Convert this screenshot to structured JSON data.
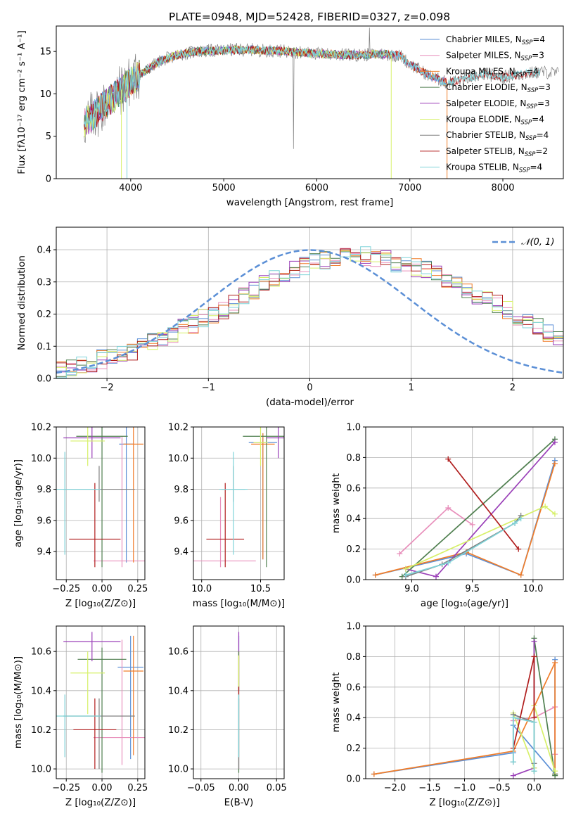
{
  "figure_title": "PLATE=0948, MJD=52428, FIBERID=0327, z=0.098",
  "colors": {
    "chabrier_miles": "#5b8fd6",
    "salpeter_miles": "#e88fbb",
    "kroupa_miles": "#f07d2a",
    "chabrier_elodie": "#4f7f4f",
    "salpeter_elodie": "#9a3fb8",
    "kroupa_elodie": "#d7f06a",
    "chabrier_stelib": "#808080",
    "salpeter_stelib": "#b01d1d",
    "kroupa_stelib": "#7fd3d8",
    "normal_curve": "#5b8fd6",
    "grid": "#b0b0b0"
  },
  "chart_data": [
    {
      "id": "spectrum",
      "type": "line",
      "xlabel": "wavelength [Angstrom, rest frame]",
      "ylabel": "Flux [fλ10⁻¹⁷ erg cm⁻² s⁻¹ A⁻¹]",
      "xlim": [
        3200,
        8650
      ],
      "ylim": [
        0,
        18
      ],
      "xticks": [
        "4000",
        "5000",
        "6000",
        "7000",
        "8000"
      ],
      "yticks": [
        "0",
        "5",
        "10",
        "15"
      ],
      "grid": false,
      "legend_position": "upper-right",
      "continuum": {
        "x": [
          3500,
          3600,
          3700,
          3800,
          3900,
          4000,
          4100,
          4200,
          4300,
          4500,
          4700,
          4900,
          5100,
          5300,
          5500,
          5700,
          5900,
          6100,
          6300,
          6500,
          6700,
          6900,
          7000,
          7200,
          7400,
          7600,
          7800,
          8000,
          8200,
          8400,
          8600
        ],
        "y": [
          6.5,
          7.5,
          8.5,
          9.5,
          10.5,
          11.5,
          12.3,
          13.0,
          13.8,
          14.6,
          15.0,
          15.1,
          15.2,
          15.2,
          15.1,
          15.0,
          14.8,
          14.7,
          14.6,
          14.6,
          14.7,
          14.5,
          13.5,
          12.2,
          11.3,
          11.8,
          12.3,
          12.0,
          12.3,
          12.6,
          12.4
        ]
      },
      "series": [
        {
          "name": "Chabrier MILES, N_SSP=4",
          "legend": "Chabrier MILES, N",
          "legend_sub": "SSP",
          "legend_val": "=4",
          "color_key": "chabrier_miles"
        },
        {
          "name": "Salpeter MILES, N_SSP=3",
          "legend": "Salpeter MILES, N",
          "legend_sub": "SSP",
          "legend_val": "=3",
          "color_key": "salpeter_miles"
        },
        {
          "name": "Kroupa MILES, N_SSP=4",
          "legend": "Kroupa MILES, N",
          "legend_sub": "SSP",
          "legend_val": "=4",
          "color_key": "kroupa_miles"
        },
        {
          "name": "Chabrier ELODIE, N_SSP=3",
          "legend": "Chabrier ELODIE, N",
          "legend_sub": "SSP",
          "legend_val": "=3",
          "color_key": "chabrier_elodie"
        },
        {
          "name": "Salpeter ELODIE, N_SSP=3",
          "legend": "Salpeter ELODIE, N",
          "legend_sub": "SSP",
          "legend_val": "=3",
          "color_key": "salpeter_elodie"
        },
        {
          "name": "Kroupa ELODIE, N_SSP=4",
          "legend": "Kroupa ELODIE, N",
          "legend_sub": "SSP",
          "legend_val": "=4",
          "color_key": "kroupa_elodie"
        },
        {
          "name": "Chabrier STELIB, N_SSP=4",
          "legend": "Chabrier STELIB, N",
          "legend_sub": "SSP",
          "legend_val": "=4",
          "color_key": "chabrier_stelib"
        },
        {
          "name": "Salpeter STELIB, N_SSP=2",
          "legend": "Salpeter STELIB, N",
          "legend_sub": "SSP",
          "legend_val": "=2",
          "color_key": "salpeter_stelib"
        },
        {
          "name": "Kroupa STELIB, N_SSP=4",
          "legend": "Kroupa STELIB, N",
          "legend_sub": "SSP",
          "legend_val": "=4",
          "color_key": "kroupa_stelib"
        }
      ]
    },
    {
      "id": "residuals",
      "type": "histogram",
      "xlabel": "(data-model)/error",
      "ylabel": "Normed distribution",
      "xlim": [
        -2.5,
        2.5
      ],
      "ylim": [
        0,
        0.47
      ],
      "xticks": [
        "−2",
        "−1",
        "0",
        "1",
        "2"
      ],
      "yticks": [
        "0.0",
        "0.1",
        "0.2",
        "0.3",
        "0.4"
      ],
      "grid": true,
      "legend_position": "upper-right",
      "legend": "𝒩(0, 1)",
      "bin_width": 0.1,
      "bin_start": -2.5,
      "base_values": [
        0.025,
        0.03,
        0.04,
        0.05,
        0.06,
        0.065,
        0.075,
        0.085,
        0.095,
        0.11,
        0.125,
        0.14,
        0.155,
        0.17,
        0.185,
        0.2,
        0.215,
        0.23,
        0.255,
        0.27,
        0.29,
        0.305,
        0.32,
        0.335,
        0.35,
        0.36,
        0.37,
        0.375,
        0.38,
        0.385,
        0.38,
        0.375,
        0.37,
        0.36,
        0.355,
        0.345,
        0.335,
        0.32,
        0.31,
        0.295,
        0.28,
        0.26,
        0.245,
        0.23,
        0.21,
        0.195,
        0.18,
        0.16,
        0.145,
        0.13
      ],
      "normal_curve": {
        "mu": 0,
        "sigma": 1
      }
    },
    {
      "id": "age_vs_Z",
      "type": "errorbar",
      "xlabel": "Z [log₁₀(Z/Z⊙)]",
      "ylabel": "age  [log₁₀(age/yr)]",
      "xlim": [
        -0.32,
        0.3
      ],
      "ylim": [
        9.22,
        10.2
      ],
      "xticks": [
        -0.25,
        0.0,
        0.25
      ],
      "xticklabels": [
        "−0.25",
        "0.00",
        "0.25"
      ],
      "yticks": [
        9.4,
        9.6,
        9.8,
        10.0,
        10.2
      ],
      "yticklabels": [
        "9.4",
        "9.6",
        "9.8",
        "10.0",
        "10.2"
      ],
      "grid": true,
      "points": [
        {
          "x": 0.17,
          "y": 10.09,
          "xe": 0.05,
          "yl": 9.33,
          "yh": 10.2,
          "c": "chabrier_miles"
        },
        {
          "x": 0.14,
          "y": 9.34,
          "xe": 0.2,
          "yl": 9.3,
          "yh": 10.14,
          "c": "salpeter_miles"
        },
        {
          "x": 0.22,
          "y": 10.09,
          "xe": 0.07,
          "yl": 9.33,
          "yh": 10.2,
          "c": "kroupa_miles"
        },
        {
          "x": 0.0,
          "y": 10.14,
          "xe": 0.18,
          "yl": 9.3,
          "yh": 10.2,
          "c": "chabrier_elodie"
        },
        {
          "x": -0.07,
          "y": 10.13,
          "xe": 0.2,
          "yl": 10.0,
          "yh": 10.2,
          "c": "salpeter_elodie"
        },
        {
          "x": -0.1,
          "y": 10.11,
          "xe": 0.12,
          "yl": 9.95,
          "yh": 10.2,
          "c": "kroupa_elodie"
        },
        {
          "x": -0.02,
          "y": 9.8,
          "xe": 0.25,
          "yl": 9.72,
          "yh": 9.95,
          "c": "chabrier_stelib"
        },
        {
          "x": -0.05,
          "y": 9.48,
          "xe": 0.18,
          "yl": 9.3,
          "yh": 9.84,
          "c": "salpeter_stelib"
        },
        {
          "x": -0.26,
          "y": 9.8,
          "xe": 0.25,
          "yl": 9.38,
          "yh": 10.04,
          "c": "kroupa_stelib"
        }
      ]
    },
    {
      "id": "age_vs_mass",
      "type": "errorbar",
      "xlabel": "mass [log₁₀(M/M⊙)]",
      "ylabel": "",
      "xlim": [
        9.93,
        10.7
      ],
      "ylim": [
        9.22,
        10.2
      ],
      "xticks": [
        10.0,
        10.5
      ],
      "xticklabels": [
        "10.0",
        "10.5"
      ],
      "yticks": [
        9.4,
        9.6,
        9.8,
        10.0,
        10.2
      ],
      "yticklabels": [
        "9.4",
        "9.6",
        "9.8",
        "10.0",
        "10.2"
      ],
      "grid": true,
      "points": [
        {
          "x": 10.52,
          "y": 10.1,
          "xe": 0.12,
          "yl": 9.35,
          "yh": 10.16,
          "c": "chabrier_miles"
        },
        {
          "x": 10.16,
          "y": 9.34,
          "xe": 0.3,
          "yl": 9.3,
          "yh": 9.75,
          "c": "salpeter_miles"
        },
        {
          "x": 10.52,
          "y": 10.09,
          "xe": 0.1,
          "yl": 9.35,
          "yh": 10.16,
          "c": "kroupa_miles"
        },
        {
          "x": 10.55,
          "y": 10.14,
          "xe": 0.2,
          "yl": 9.3,
          "yh": 10.2,
          "c": "chabrier_elodie"
        },
        {
          "x": 10.65,
          "y": 10.13,
          "xe": 0.1,
          "yl": 10.0,
          "yh": 10.2,
          "c": "salpeter_elodie"
        },
        {
          "x": 10.5,
          "y": 10.1,
          "xe": 0.06,
          "yl": 9.95,
          "yh": 10.2,
          "c": "kroupa_elodie"
        },
        {
          "x": 10.27,
          "y": 9.8,
          "xe": 0.1,
          "yl": 9.72,
          "yh": 9.95,
          "c": "chabrier_stelib"
        },
        {
          "x": 10.2,
          "y": 9.48,
          "xe": 0.16,
          "yl": 9.3,
          "yh": 9.84,
          "c": "salpeter_stelib"
        },
        {
          "x": 10.27,
          "y": 9.8,
          "xe": 0.12,
          "yl": 9.38,
          "yh": 10.04,
          "c": "kroupa_stelib"
        }
      ]
    },
    {
      "id": "weight_vs_age",
      "type": "line",
      "xlabel": "age  [log₁₀(age/yr)]",
      "ylabel": "mass weight",
      "xlim": [
        8.62,
        10.25
      ],
      "ylim": [
        0,
        1
      ],
      "xticks": [
        9.0,
        9.5,
        10.0
      ],
      "xticklabels": [
        "9.0",
        "9.5",
        "10.0"
      ],
      "yticks": [
        0,
        0.2,
        0.4,
        0.6,
        0.8,
        1.0
      ],
      "yticklabels": [
        "0.0",
        "0.2",
        "0.4",
        "0.6",
        "0.8",
        "1.0"
      ],
      "grid": true,
      "series": [
        {
          "c": "chabrier_miles",
          "x": [
            8.7,
            9.45,
            9.9,
            10.18
          ],
          "y": [
            0.03,
            0.17,
            0.03,
            0.78
          ]
        },
        {
          "c": "salpeter_miles",
          "x": [
            8.9,
            9.3,
            9.5
          ],
          "y": [
            0.17,
            0.47,
            0.36
          ]
        },
        {
          "c": "kroupa_miles",
          "x": [
            8.7,
            9.45,
            9.9,
            10.18
          ],
          "y": [
            0.03,
            0.18,
            0.03,
            0.76
          ]
        },
        {
          "c": "chabrier_elodie",
          "x": [
            8.92,
            10.18
          ],
          "y": [
            0.02,
            0.92
          ]
        },
        {
          "c": "salpeter_elodie",
          "x": [
            8.95,
            9.2,
            10.18
          ],
          "y": [
            0.07,
            0.02,
            0.9
          ]
        },
        {
          "c": "kroupa_elodie",
          "x": [
            8.95,
            10.1,
            10.18
          ],
          "y": [
            0.07,
            0.48,
            0.43
          ]
        },
        {
          "c": "chabrier_stelib",
          "x": [
            8.95,
            9.25,
            9.85,
            9.9
          ],
          "y": [
            0.02,
            0.1,
            0.37,
            0.42
          ]
        },
        {
          "c": "salpeter_stelib",
          "x": [
            9.3,
            9.88
          ],
          "y": [
            0.79,
            0.2
          ]
        },
        {
          "c": "kroupa_stelib",
          "x": [
            8.95,
            9.3,
            9.85,
            9.9
          ],
          "y": [
            0.03,
            0.11,
            0.37,
            0.4
          ]
        }
      ]
    },
    {
      "id": "mass_vs_Z",
      "type": "errorbar",
      "xlabel": "Z [log₁₀(Z/Z⊙)]",
      "ylabel": "mass [log₁₀(M/M⊙)]",
      "xlim": [
        -0.32,
        0.3
      ],
      "ylim": [
        9.95,
        10.73
      ],
      "xticks": [
        -0.25,
        0.0,
        0.25
      ],
      "xticklabels": [
        "−0.25",
        "0.00",
        "0.25"
      ],
      "yticks": [
        10.0,
        10.2,
        10.4,
        10.6
      ],
      "yticklabels": [
        "10.0",
        "10.2",
        "10.4",
        "10.6"
      ],
      "grid": true,
      "points": [
        {
          "x": 0.2,
          "y": 10.52,
          "xe": 0.09,
          "yl": 10.05,
          "yh": 10.68,
          "c": "chabrier_miles"
        },
        {
          "x": 0.14,
          "y": 10.16,
          "xe": 0.2,
          "yl": 10.02,
          "yh": 10.66,
          "c": "salpeter_miles"
        },
        {
          "x": 0.22,
          "y": 10.5,
          "xe": 0.07,
          "yl": 10.07,
          "yh": 10.68,
          "c": "kroupa_miles"
        },
        {
          "x": 0.0,
          "y": 10.56,
          "xe": 0.17,
          "yl": 9.98,
          "yh": 10.62,
          "c": "chabrier_elodie"
        },
        {
          "x": -0.07,
          "y": 10.65,
          "xe": 0.2,
          "yl": 10.55,
          "yh": 10.7,
          "c": "salpeter_elodie"
        },
        {
          "x": -0.1,
          "y": 10.49,
          "xe": 0.12,
          "yl": 10.28,
          "yh": 10.6,
          "c": "kroupa_elodie"
        },
        {
          "x": -0.02,
          "y": 10.27,
          "xe": 0.25,
          "yl": 10.0,
          "yh": 10.36,
          "c": "chabrier_stelib"
        },
        {
          "x": -0.05,
          "y": 10.2,
          "xe": 0.15,
          "yl": 10.0,
          "yh": 10.36,
          "c": "salpeter_stelib"
        },
        {
          "x": -0.26,
          "y": 10.27,
          "xe": 0.25,
          "yl": 10.06,
          "yh": 10.38,
          "c": "kroupa_stelib"
        }
      ]
    },
    {
      "id": "mass_vs_EBV",
      "type": "errorbar",
      "xlabel": "E(B-V)",
      "ylabel": "",
      "xlim": [
        -0.06,
        0.06
      ],
      "ylim": [
        9.95,
        10.73
      ],
      "xticks": [
        -0.05,
        0.0,
        0.05
      ],
      "xticklabels": [
        "−0.05",
        "0.00",
        "0.05"
      ],
      "yticks": [
        10.0,
        10.2,
        10.4,
        10.6
      ],
      "yticklabels": [
        "10.0",
        "10.2",
        "10.4",
        "10.6"
      ],
      "grid": true,
      "points": [
        {
          "x": 0.0,
          "y": 10.52,
          "xe": 0.0,
          "yl": 10.4,
          "yh": 10.68,
          "c": "chabrier_miles"
        },
        {
          "x": 0.0,
          "y": 10.16,
          "xe": 0.0,
          "yl": 10.0,
          "yh": 10.6,
          "c": "salpeter_miles"
        },
        {
          "x": 0.0,
          "y": 10.5,
          "xe": 0.0,
          "yl": 10.4,
          "yh": 10.6,
          "c": "kroupa_miles"
        },
        {
          "x": 0.0,
          "y": 10.56,
          "xe": 0.0,
          "yl": 9.98,
          "yh": 10.6,
          "c": "chabrier_elodie"
        },
        {
          "x": 0.0,
          "y": 10.65,
          "xe": 0.0,
          "yl": 10.6,
          "yh": 10.7,
          "c": "salpeter_elodie"
        },
        {
          "x": 0.0,
          "y": 10.49,
          "xe": 0.0,
          "yl": 10.42,
          "yh": 10.58,
          "c": "kroupa_elodie"
        },
        {
          "x": 0.0,
          "y": 10.27,
          "xe": 0.0,
          "yl": 10.0,
          "yh": 10.36,
          "c": "chabrier_stelib"
        },
        {
          "x": 0.0,
          "y": 10.4,
          "xe": 0.0,
          "yl": 10.38,
          "yh": 10.42,
          "c": "salpeter_stelib"
        },
        {
          "x": 0.0,
          "y": 10.27,
          "xe": 0.0,
          "yl": 10.06,
          "yh": 10.38,
          "c": "kroupa_stelib"
        }
      ]
    },
    {
      "id": "weight_vs_Z",
      "type": "line",
      "xlabel": "Z [log₁₀(Z/Z⊙)]",
      "ylabel": "mass weight",
      "xlim": [
        -2.42,
        0.42
      ],
      "ylim": [
        0,
        1
      ],
      "xticks": [
        -2.0,
        -1.5,
        -1.0,
        -0.5,
        0.0
      ],
      "xticklabels": [
        "−2.0",
        "−1.5",
        "−1.0",
        "−0.5",
        "0.0"
      ],
      "yticks": [
        0,
        0.2,
        0.4,
        0.6,
        0.8,
        1.0
      ],
      "yticklabels": [
        "0.0",
        "0.2",
        "0.4",
        "0.6",
        "0.8",
        "1.0"
      ],
      "grid": true,
      "series": [
        {
          "c": "chabrier_miles",
          "x": [
            -2.3,
            -0.3,
            -0.3,
            0.3,
            0.3
          ],
          "y": [
            0.03,
            0.17,
            0.35,
            0.03,
            0.78
          ]
        },
        {
          "c": "salpeter_miles",
          "x": [
            -0.3,
            0.0,
            0.3,
            0.3
          ],
          "y": [
            0.38,
            0.4,
            0.47,
            0.16
          ]
        },
        {
          "c": "kroupa_miles",
          "x": [
            -2.3,
            -0.3,
            0.3,
            0.3
          ],
          "y": [
            0.03,
            0.18,
            0.76,
            0.03
          ]
        },
        {
          "c": "chabrier_elodie",
          "x": [
            0.0,
            0.0,
            0.3,
            0.3
          ],
          "y": [
            0.05,
            0.92,
            0.02,
            0.03
          ]
        },
        {
          "c": "salpeter_elodie",
          "x": [
            -0.3,
            0.0,
            0.0
          ],
          "y": [
            0.02,
            0.07,
            0.9
          ]
        },
        {
          "c": "kroupa_elodie",
          "x": [
            -0.3,
            0.0,
            0.0,
            0.3
          ],
          "y": [
            0.43,
            0.07,
            0.48,
            0.05
          ]
        },
        {
          "c": "chabrier_stelib",
          "x": [
            -0.3,
            -0.3,
            0.0,
            0.0
          ],
          "y": [
            0.11,
            0.42,
            0.37,
            0.1
          ]
        },
        {
          "c": "salpeter_stelib",
          "x": [
            -0.3,
            0.0,
            0.0
          ],
          "y": [
            0.2,
            0.8,
            0.4
          ]
        },
        {
          "c": "kroupa_stelib",
          "x": [
            -0.3,
            -0.3,
            0.0,
            0.0
          ],
          "y": [
            0.11,
            0.4,
            0.37,
            0.05
          ]
        }
      ]
    }
  ]
}
